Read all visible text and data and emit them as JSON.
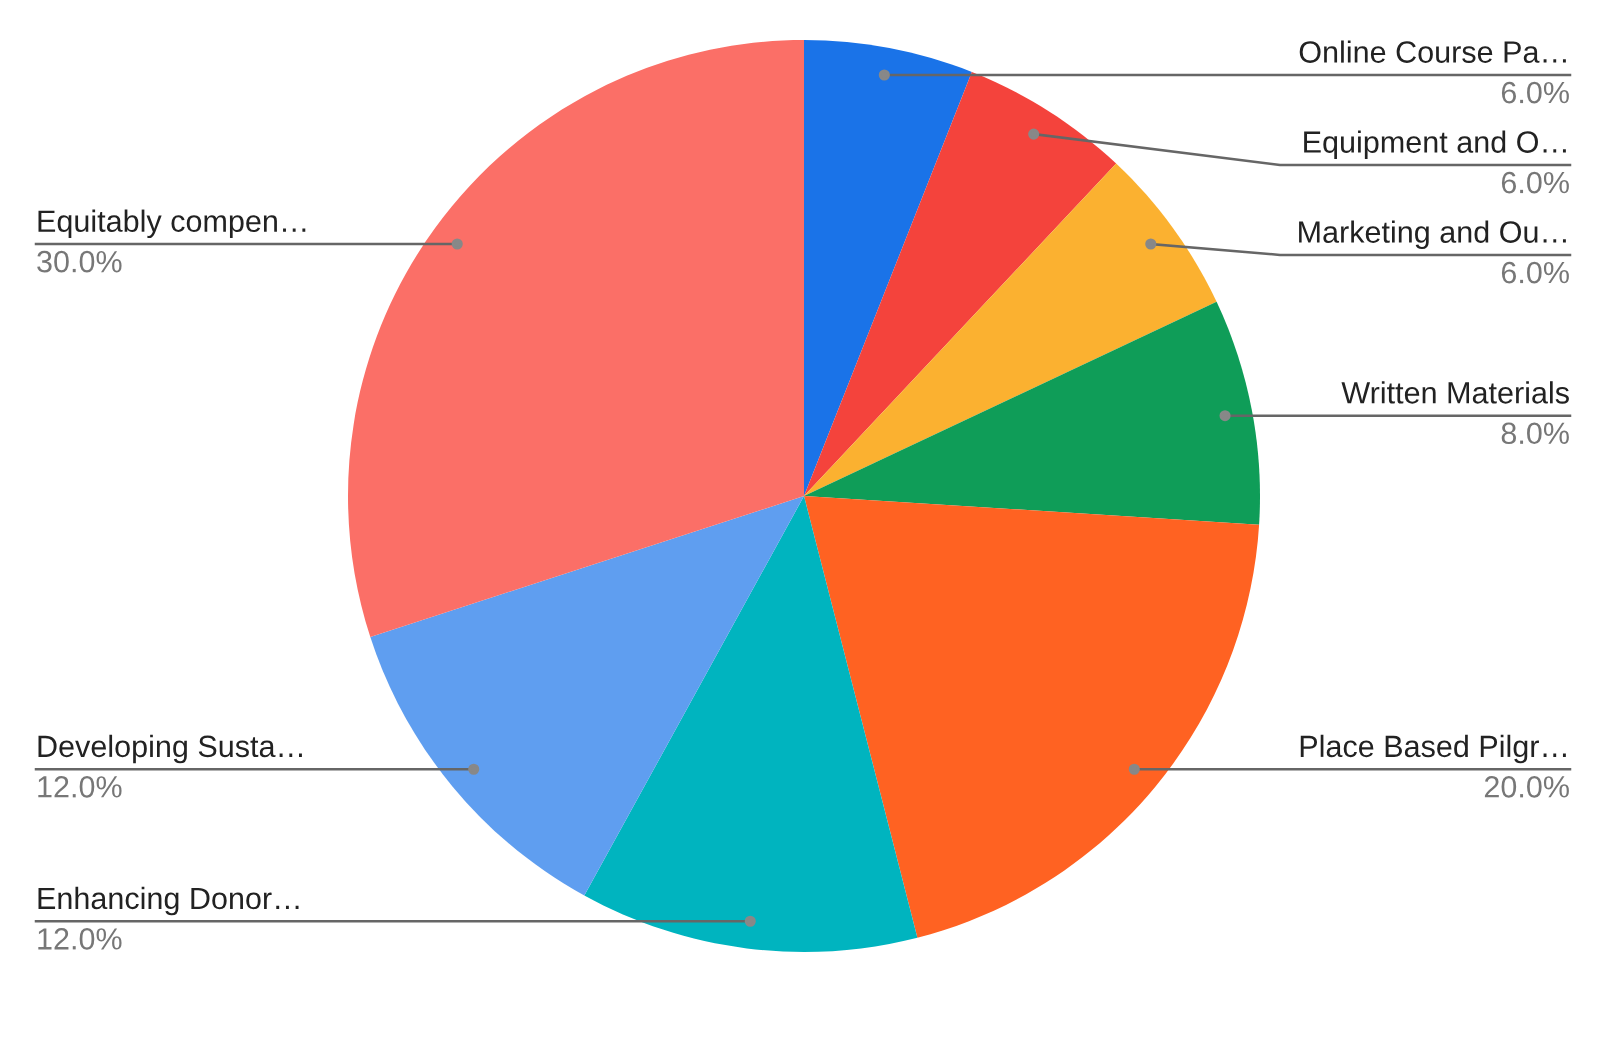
{
  "chart_data": {
    "type": "pie",
    "categories": [
      "Online Course Pa…",
      "Equipment and O…",
      "Marketing and Ou…",
      "Written Materials",
      "Place Based Pilgr…",
      "Enhancing Donor…",
      "Developing Susta…",
      "Equitably compen…"
    ],
    "values": [
      6,
      6,
      6,
      8,
      20,
      12,
      12,
      30
    ],
    "value_labels": [
      "6.0%",
      "6.0%",
      "6.0%",
      "8.0%",
      "20.0%",
      "12.0%",
      "12.0%",
      "30.0%"
    ],
    "colors": [
      "#1a73e8",
      "#f4433c",
      "#fbb130",
      "#0f9d58",
      "#ff6222",
      "#00b4bf",
      "#5f9ef0",
      "#fb6f67"
    ]
  }
}
